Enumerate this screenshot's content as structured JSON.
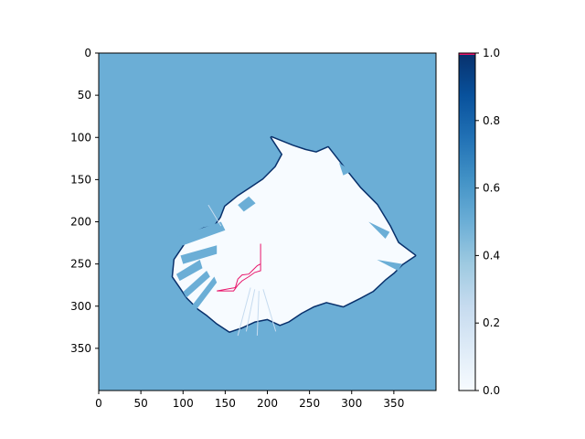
{
  "chart_data": {
    "type": "heatmap",
    "title": "",
    "xlabel": "",
    "ylabel": "",
    "xlim": [
      0,
      400
    ],
    "ylim": [
      400,
      0
    ],
    "x_ticks": [
      "0",
      "50",
      "100",
      "150",
      "200",
      "250",
      "300",
      "350"
    ],
    "y_ticks": [
      "0",
      "50",
      "100",
      "150",
      "200",
      "250",
      "300",
      "350"
    ],
    "colormap": "Blues",
    "colorbar": {
      "range": [
        0,
        1
      ],
      "ticks": [
        "0.0",
        "0.2",
        "0.4",
        "0.6",
        "0.8",
        "1.0"
      ]
    },
    "background_value": 0.5,
    "free_value": 0.0,
    "occupied_value": 1.0,
    "free_region_polygon": [
      [
        205,
        100
      ],
      [
        230,
        110
      ],
      [
        245,
        115
      ],
      [
        258,
        118
      ],
      [
        272,
        112
      ],
      [
        290,
        135
      ],
      [
        310,
        160
      ],
      [
        330,
        180
      ],
      [
        345,
        205
      ],
      [
        355,
        225
      ],
      [
        375,
        240
      ],
      [
        360,
        250
      ],
      [
        350,
        260
      ],
      [
        340,
        268
      ],
      [
        325,
        282
      ],
      [
        310,
        290
      ],
      [
        290,
        300
      ],
      [
        270,
        295
      ],
      [
        255,
        300
      ],
      [
        240,
        308
      ],
      [
        225,
        318
      ],
      [
        215,
        322
      ],
      [
        200,
        315
      ],
      [
        185,
        318
      ],
      [
        170,
        325
      ],
      [
        155,
        330
      ],
      [
        140,
        320
      ],
      [
        128,
        310
      ],
      [
        118,
        303
      ],
      [
        105,
        290
      ],
      [
        97,
        278
      ],
      [
        88,
        265
      ],
      [
        90,
        245
      ],
      [
        100,
        230
      ],
      [
        110,
        215
      ],
      [
        125,
        208
      ],
      [
        138,
        205
      ],
      [
        145,
        195
      ],
      [
        150,
        182
      ],
      [
        165,
        170
      ],
      [
        180,
        160
      ],
      [
        195,
        150
      ],
      [
        210,
        135
      ],
      [
        218,
        120
      ]
    ],
    "occupied_wedges": [
      [
        [
          92,
          218
        ],
        [
          145,
          200
        ],
        [
          150,
          210
        ],
        [
          100,
          228
        ]
      ],
      [
        [
          97,
          240
        ],
        [
          140,
          228
        ],
        [
          140,
          238
        ],
        [
          100,
          250
        ]
      ],
      [
        [
          92,
          262
        ],
        [
          120,
          245
        ],
        [
          123,
          255
        ],
        [
          96,
          270
        ]
      ],
      [
        [
          100,
          283
        ],
        [
          128,
          258
        ],
        [
          132,
          265
        ],
        [
          104,
          290
        ]
      ],
      [
        [
          110,
          300
        ],
        [
          137,
          265
        ],
        [
          140,
          272
        ],
        [
          115,
          305
        ]
      ],
      [
        [
          165,
          180
        ],
        [
          178,
          170
        ],
        [
          186,
          178
        ],
        [
          172,
          188
        ]
      ],
      [
        [
          285,
          130
        ],
        [
          300,
          140
        ],
        [
          290,
          145
        ]
      ],
      [
        [
          320,
          200
        ],
        [
          345,
          212
        ],
        [
          340,
          220
        ]
      ],
      [
        [
          330,
          245
        ],
        [
          360,
          250
        ],
        [
          355,
          258
        ]
      ]
    ],
    "rays": [
      [
        [
          180,
          278
        ],
        [
          165,
          335
        ]
      ],
      [
        [
          185,
          280
        ],
        [
          175,
          330
        ]
      ],
      [
        [
          190,
          282
        ],
        [
          188,
          335
        ]
      ],
      [
        [
          195,
          280
        ],
        [
          210,
          330
        ]
      ],
      [
        [
          145,
          205
        ],
        [
          130,
          180
        ]
      ]
    ],
    "path_color": "#e8156b",
    "path": [
      [
        192,
        226
      ],
      [
        192,
        250
      ],
      [
        188,
        252
      ],
      [
        183,
        257
      ],
      [
        178,
        262
      ],
      [
        170,
        263
      ],
      [
        165,
        268
      ],
      [
        162,
        278
      ],
      [
        140,
        282
      ],
      [
        160,
        282
      ],
      [
        165,
        275
      ],
      [
        170,
        270
      ],
      [
        178,
        265
      ],
      [
        185,
        260
      ],
      [
        192,
        258
      ],
      [
        192,
        254
      ],
      [
        192,
        250
      ]
    ],
    "colorbar_marker_color": "#e8156b"
  }
}
